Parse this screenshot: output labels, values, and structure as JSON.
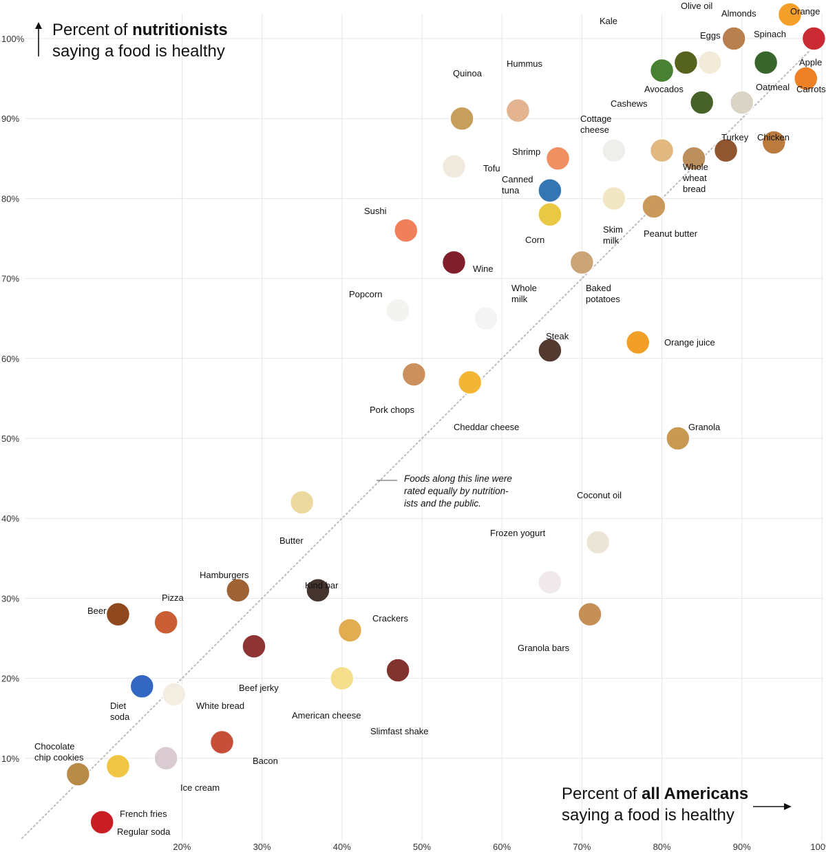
{
  "chart_data": {
    "type": "scatter",
    "title": "",
    "xlabel": {
      "prefix": "Percent of ",
      "bold": "all Americans",
      "suffix": "saying a food is healthy"
    },
    "ylabel": {
      "prefix": "Percent of ",
      "bold": "nutritionists",
      "suffix": "saying a food is healthy"
    },
    "xlim": [
      0,
      100
    ],
    "ylim": [
      0,
      100
    ],
    "x_ticks": [
      {
        "value": 20,
        "label": "20%"
      },
      {
        "value": 30,
        "label": "30%"
      },
      {
        "value": 40,
        "label": "40%"
      },
      {
        "value": 50,
        "label": "50%"
      },
      {
        "value": 60,
        "label": "60%"
      },
      {
        "value": 70,
        "label": "70%"
      },
      {
        "value": 80,
        "label": "80%"
      },
      {
        "value": 90,
        "label": "90%"
      },
      {
        "value": 100,
        "label": "100%"
      }
    ],
    "y_ticks": [
      {
        "value": 10,
        "label": "10%"
      },
      {
        "value": 20,
        "label": "20%"
      },
      {
        "value": 30,
        "label": "30%"
      },
      {
        "value": 40,
        "label": "40%"
      },
      {
        "value": 50,
        "label": "50%"
      },
      {
        "value": 60,
        "label": "60%"
      },
      {
        "value": 70,
        "label": "70%"
      },
      {
        "value": 80,
        "label": "80%"
      },
      {
        "value": 90,
        "label": "90%"
      },
      {
        "value": 100,
        "label": "100%"
      }
    ],
    "grid": true,
    "reference_line_note": "Foods along this line were rated equally by nutritionists and the public.",
    "reference_line_note_lines": [
      "Foods along this line were",
      "rated equally by nutrition-",
      "ists and the public."
    ],
    "points": [
      {
        "name": "Kale",
        "x": 80,
        "y": 96,
        "color": "#3f7a2a"
      },
      {
        "name": "Olive oil",
        "x": 83,
        "y": 97,
        "color": "#4d5b12"
      },
      {
        "name": "Eggs",
        "x": 86,
        "y": 97,
        "color": "#f2ead8"
      },
      {
        "name": "Almonds",
        "x": 89,
        "y": 100,
        "color": "#b57a45"
      },
      {
        "name": "Spinach",
        "x": 93,
        "y": 97,
        "color": "#2f5e22"
      },
      {
        "name": "Orange",
        "x": 96,
        "y": 103,
        "color": "#f39a1d"
      },
      {
        "name": "Apple",
        "x": 99,
        "y": 100,
        "color": "#c8202a"
      },
      {
        "name": "Avocados",
        "x": 85,
        "y": 92,
        "color": "#3d5a1d"
      },
      {
        "name": "Oatmeal",
        "x": 90,
        "y": 92,
        "color": "#d9d2c3"
      },
      {
        "name": "Carrots",
        "x": 98,
        "y": 95,
        "color": "#ee7a1a"
      },
      {
        "name": "Cashews",
        "x": 80,
        "y": 86,
        "color": "#e0b67a"
      },
      {
        "name": "Turkey",
        "x": 88,
        "y": 86,
        "color": "#8a4d25"
      },
      {
        "name": "Chicken",
        "x": 94,
        "y": 87,
        "color": "#b87435"
      },
      {
        "name": "Quinoa",
        "x": 55,
        "y": 90,
        "color": "#c59a55"
      },
      {
        "name": "Hummus",
        "x": 62,
        "y": 91,
        "color": "#e2b08a"
      },
      {
        "name": "Cottage cheese",
        "x": 74,
        "y": 86,
        "color": "#eeeeea"
      },
      {
        "name": "Shrimp",
        "x": 67,
        "y": 85,
        "color": "#f08a5a"
      },
      {
        "name": "Tofu",
        "x": 54,
        "y": 84,
        "color": "#efe9dc"
      },
      {
        "name": "Canned tuna",
        "x": 66,
        "y": 81,
        "color": "#2a6fb0"
      },
      {
        "name": "Whole wheat bread",
        "x": 84,
        "y": 85,
        "color": "#b98a55"
      },
      {
        "name": "Skim milk",
        "x": 74,
        "y": 80,
        "color": "#f1e6c2"
      },
      {
        "name": "Peanut butter",
        "x": 79,
        "y": 79,
        "color": "#c89555"
      },
      {
        "name": "Corn",
        "x": 66,
        "y": 78,
        "color": "#e8c73b"
      },
      {
        "name": "Sushi",
        "x": 48,
        "y": 76,
        "color": "#f17a52"
      },
      {
        "name": "Wine",
        "x": 54,
        "y": 72,
        "color": "#7a1420"
      },
      {
        "name": "Baked potatoes",
        "x": 70,
        "y": 72,
        "color": "#c9a070"
      },
      {
        "name": "Popcorn",
        "x": 47,
        "y": 66,
        "color": "#f3f3ef"
      },
      {
        "name": "Whole milk",
        "x": 58,
        "y": 65,
        "color": "#f4f4f4"
      },
      {
        "name": "Steak",
        "x": 66,
        "y": 61,
        "color": "#4a3026"
      },
      {
        "name": "Orange juice",
        "x": 77,
        "y": 62,
        "color": "#f29a1c"
      },
      {
        "name": "Pork chops",
        "x": 49,
        "y": 58,
        "color": "#c98b55"
      },
      {
        "name": "Cheddar cheese",
        "x": 56,
        "y": 57,
        "color": "#f3b22a"
      },
      {
        "name": "Granola",
        "x": 82,
        "y": 50,
        "color": "#c79348"
      },
      {
        "name": "Coconut oil",
        "x": 72,
        "y": 37,
        "color": "#eae4d6"
      },
      {
        "name": "Butter",
        "x": 35,
        "y": 42,
        "color": "#ead79b"
      },
      {
        "name": "Frozen yogurt",
        "x": 66,
        "y": 32,
        "color": "#f1e7ea"
      },
      {
        "name": "Granola bars",
        "x": 71,
        "y": 28,
        "color": "#c28a4e"
      },
      {
        "name": "Hamburgers",
        "x": 27,
        "y": 31,
        "color": "#9a5a2a"
      },
      {
        "name": "Kind bar",
        "x": 37,
        "y": 31,
        "color": "#3a2a22"
      },
      {
        "name": "Crackers",
        "x": 41,
        "y": 26,
        "color": "#e1a948"
      },
      {
        "name": "Beer",
        "x": 12,
        "y": 28,
        "color": "#8a3e12"
      },
      {
        "name": "Pizza",
        "x": 18,
        "y": 27,
        "color": "#c9552a"
      },
      {
        "name": "Beef jerky",
        "x": 29,
        "y": 24,
        "color": "#8a2a2a"
      },
      {
        "name": "American cheese",
        "x": 40,
        "y": 20,
        "color": "#f6de86"
      },
      {
        "name": "Slimfast shake",
        "x": 47,
        "y": 21,
        "color": "#7a2a22"
      },
      {
        "name": "Diet soda",
        "x": 15,
        "y": 19,
        "color": "#2a5fbf"
      },
      {
        "name": "White bread",
        "x": 19,
        "y": 18,
        "color": "#f4ede0"
      },
      {
        "name": "Chocolate chip cookies",
        "x": 7,
        "y": 8,
        "color": "#b5853f"
      },
      {
        "name": "French fries",
        "x": 12,
        "y": 9,
        "color": "#f0c23a"
      },
      {
        "name": "Ice cream",
        "x": 18,
        "y": 10,
        "color": "#d9c8cf"
      },
      {
        "name": "Bacon",
        "x": 25,
        "y": 12,
        "color": "#c54630"
      },
      {
        "name": "Regular soda",
        "x": 10,
        "y": 2,
        "color": "#c8121a"
      }
    ]
  },
  "labels": [
    {
      "key": "kale",
      "lines": [
        "Kale"
      ]
    },
    {
      "key": "olive_oil",
      "lines": [
        "Olive oil"
      ]
    },
    {
      "key": "almonds",
      "lines": [
        "Almonds"
      ]
    },
    {
      "key": "orange",
      "lines": [
        "Orange"
      ]
    },
    {
      "key": "eggs",
      "lines": [
        "Eggs"
      ]
    },
    {
      "key": "spinach",
      "lines": [
        "Spinach"
      ]
    },
    {
      "key": "apple",
      "lines": [
        "Apple"
      ]
    },
    {
      "key": "avocados",
      "lines": [
        "Avocados"
      ]
    },
    {
      "key": "oatmeal",
      "lines": [
        "Oatmeal"
      ]
    },
    {
      "key": "carrots",
      "lines": [
        "Carrots"
      ]
    },
    {
      "key": "cashews",
      "lines": [
        "Cashews"
      ]
    },
    {
      "key": "turkey",
      "lines": [
        "Turkey"
      ]
    },
    {
      "key": "chicken",
      "lines": [
        "Chicken"
      ]
    },
    {
      "key": "quinoa",
      "lines": [
        "Quinoa"
      ]
    },
    {
      "key": "hummus",
      "lines": [
        "Hummus"
      ]
    },
    {
      "key": "cottage_cheese",
      "lines": [
        "Cottage",
        "cheese"
      ]
    },
    {
      "key": "shrimp",
      "lines": [
        "Shrimp"
      ]
    },
    {
      "key": "tofu",
      "lines": [
        "Tofu"
      ]
    },
    {
      "key": "canned_tuna",
      "lines": [
        "Canned",
        "tuna"
      ]
    },
    {
      "key": "whole_wheat_bread",
      "lines": [
        "Whole",
        "wheat",
        "bread"
      ]
    },
    {
      "key": "skim_milk",
      "lines": [
        "Skim",
        "milk"
      ]
    },
    {
      "key": "peanut_butter",
      "lines": [
        "Peanut butter"
      ]
    },
    {
      "key": "corn",
      "lines": [
        "Corn"
      ]
    },
    {
      "key": "sushi",
      "lines": [
        "Sushi"
      ]
    },
    {
      "key": "wine",
      "lines": [
        "Wine"
      ]
    },
    {
      "key": "baked_potatoes",
      "lines": [
        "Baked",
        "potatoes"
      ]
    },
    {
      "key": "popcorn",
      "lines": [
        "Popcorn"
      ]
    },
    {
      "key": "whole_milk",
      "lines": [
        "Whole",
        "milk"
      ]
    },
    {
      "key": "steak",
      "lines": [
        "Steak"
      ]
    },
    {
      "key": "orange_juice",
      "lines": [
        "Orange juice"
      ]
    },
    {
      "key": "pork_chops",
      "lines": [
        "Pork chops"
      ]
    },
    {
      "key": "cheddar_cheese",
      "lines": [
        "Cheddar cheese"
      ]
    },
    {
      "key": "granola",
      "lines": [
        "Granola"
      ]
    },
    {
      "key": "coconut_oil",
      "lines": [
        "Coconut oil"
      ]
    },
    {
      "key": "butter",
      "lines": [
        "Butter"
      ]
    },
    {
      "key": "frozen_yogurt",
      "lines": [
        "Frozen yogurt"
      ]
    },
    {
      "key": "granola_bars",
      "lines": [
        "Granola bars"
      ]
    },
    {
      "key": "hamburgers",
      "lines": [
        "Hamburgers"
      ]
    },
    {
      "key": "kind_bar",
      "lines": [
        "Kind bar"
      ]
    },
    {
      "key": "crackers",
      "lines": [
        "Crackers"
      ]
    },
    {
      "key": "beer",
      "lines": [
        "Beer"
      ]
    },
    {
      "key": "pizza",
      "lines": [
        "Pizza"
      ]
    },
    {
      "key": "beef_jerky",
      "lines": [
        "Beef jerky"
      ]
    },
    {
      "key": "american_cheese",
      "lines": [
        "American cheese"
      ]
    },
    {
      "key": "slimfast_shake",
      "lines": [
        "Slimfast shake"
      ]
    },
    {
      "key": "diet_soda",
      "lines": [
        "Diet",
        "soda"
      ]
    },
    {
      "key": "white_bread",
      "lines": [
        "White bread"
      ]
    },
    {
      "key": "chocolate_chip_cookies",
      "lines": [
        "Chocolate",
        "chip cookies"
      ]
    },
    {
      "key": "french_fries",
      "lines": [
        "French fries"
      ]
    },
    {
      "key": "ice_cream",
      "lines": [
        "Ice cream"
      ]
    },
    {
      "key": "bacon",
      "lines": [
        "Bacon"
      ]
    },
    {
      "key": "regular_soda",
      "lines": [
        "Regular soda"
      ]
    }
  ],
  "colors": {
    "grid": "#e6e6e6",
    "diagonal": "#bbbbbb",
    "text": "#111111"
  }
}
